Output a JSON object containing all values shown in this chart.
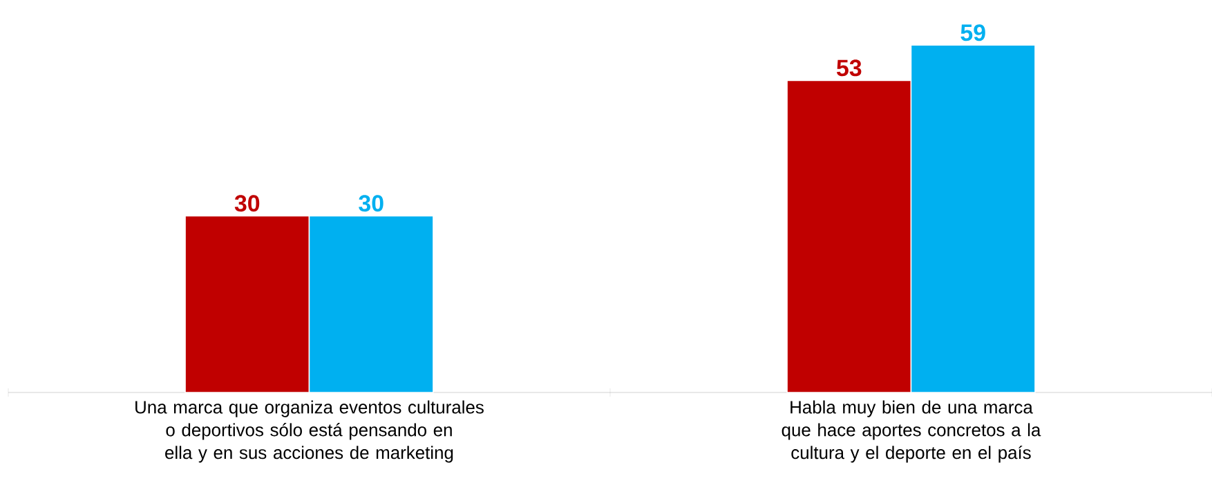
{
  "chart_data": {
    "type": "bar",
    "categories": [
      "Una marca que organiza eventos culturales o deportivos sólo está pensando en ella y en sus acciones de marketing",
      "Habla muy bien de una marca que hace  aportes concretos a la cultura y el deporte en el país"
    ],
    "series": [
      {
        "color": "#c00000",
        "values": [
          30,
          53
        ]
      },
      {
        "color": "#00b0f0",
        "values": [
          30,
          59
        ]
      }
    ],
    "data_labels": true
  }
}
